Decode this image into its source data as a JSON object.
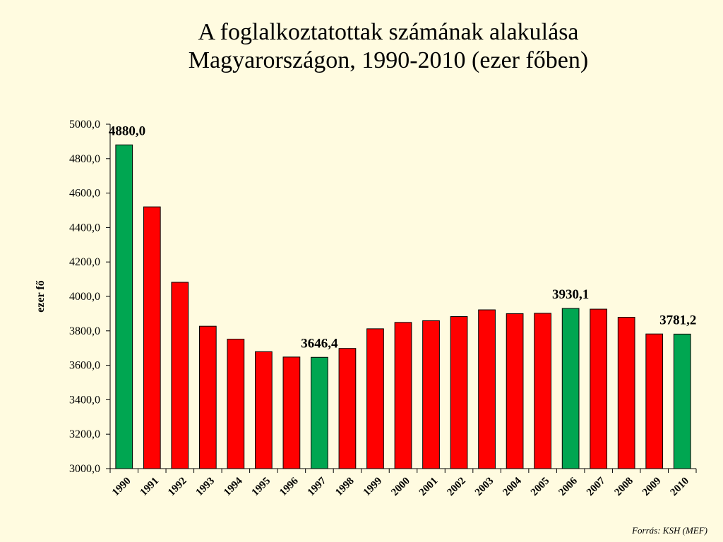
{
  "slide": {
    "title_line1": "A foglalkoztatottak számának alakulása",
    "title_line2": "Magyarországon, 1990-2010 (ezer főben)",
    "source": "Forrás: KSH (MEF)"
  },
  "colors": {
    "background": "#fffbe0",
    "bar_red": "#ff0000",
    "bar_green": "#00a651",
    "outline": "#000000"
  },
  "chart_data": {
    "type": "bar",
    "title": "",
    "xlabel": "",
    "ylabel": "ezer fő",
    "ylim": [
      3000,
      5000
    ],
    "yticks": [
      3000,
      3200,
      3400,
      3600,
      3800,
      4000,
      4200,
      4400,
      4600,
      4800,
      5000
    ],
    "ytick_labels": [
      "3000,0",
      "3200,0",
      "3400,0",
      "3600,0",
      "3800,0",
      "4000,0",
      "4200,0",
      "4400,0",
      "4600,0",
      "4800,0",
      "5000,0"
    ],
    "grid": false,
    "categories": [
      "1990",
      "1991",
      "1992",
      "1993",
      "1994",
      "1995",
      "1996",
      "1997",
      "1998",
      "1999",
      "2000",
      "2001",
      "2002",
      "2003",
      "2004",
      "2005",
      "2006",
      "2007",
      "2008",
      "2009",
      "2010"
    ],
    "values": [
      4880.0,
      4520,
      4082,
      3827,
      3752,
      3679,
      3648,
      3646.4,
      3698,
      3812,
      3849,
      3859,
      3883,
      3922,
      3900,
      3902,
      3930.1,
      3926,
      3879,
      3782,
      3781.2
    ],
    "bar_colors": [
      "green",
      "red",
      "red",
      "red",
      "red",
      "red",
      "red",
      "green",
      "red",
      "red",
      "red",
      "red",
      "red",
      "red",
      "red",
      "red",
      "green",
      "red",
      "red",
      "red",
      "green"
    ],
    "data_labels": [
      {
        "index": 0,
        "text": "4880,0"
      },
      {
        "index": 7,
        "text": "3646,4"
      },
      {
        "index": 16,
        "text": "3930,1"
      },
      {
        "index": 20,
        "text": "3781,2"
      }
    ]
  }
}
